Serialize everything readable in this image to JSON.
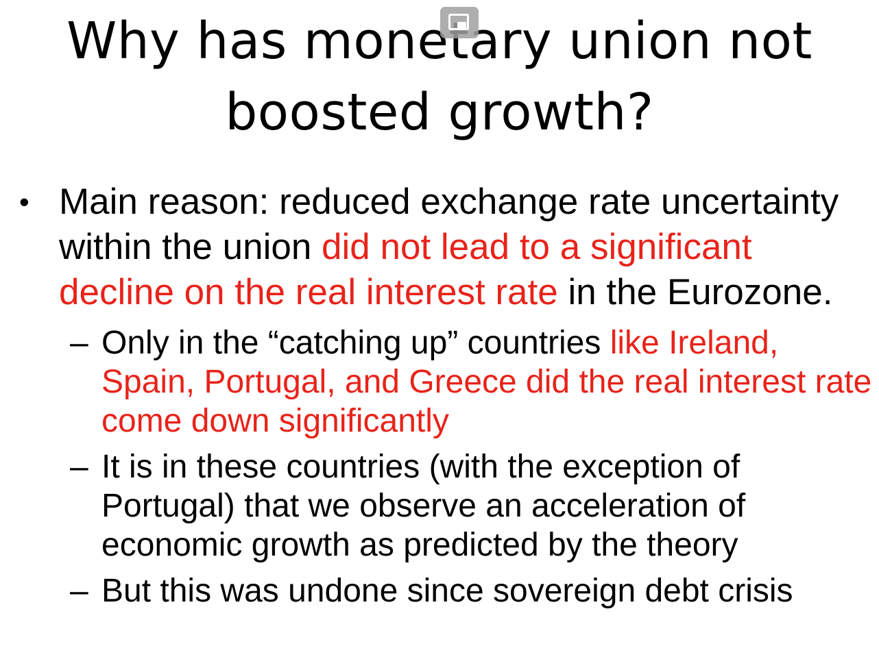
{
  "slide": {
    "title_lines": [
      "Why has monetary union not",
      "boosted growth?"
    ],
    "bullet": {
      "marker": "•",
      "text_before": "Main reason: reduced exchange rate uncertainty within the union ",
      "text_red": "did not lead to a significant decline on the real interest rate",
      "text_after": " in the Eurozone."
    },
    "sub_bullets": [
      {
        "marker": "–",
        "text_before": "Only in the “catching up” countries ",
        "text_red": "like Ireland, Spain, Portugal, and Greece did the real interest rate come down significantly",
        "text_after": ""
      },
      {
        "marker": "–",
        "text_before": "It is in these countries (with the exception of Portugal) that we observe an acceleration of economic growth as predicted by the theory",
        "text_red": "",
        "text_after": ""
      },
      {
        "marker": "–",
        "text_before": "But this was undone since sovereign debt crisis",
        "text_red": "",
        "text_after": ""
      }
    ],
    "highlight_color": "#e8231a",
    "overlay_icon": "screen-overlay-icon"
  }
}
